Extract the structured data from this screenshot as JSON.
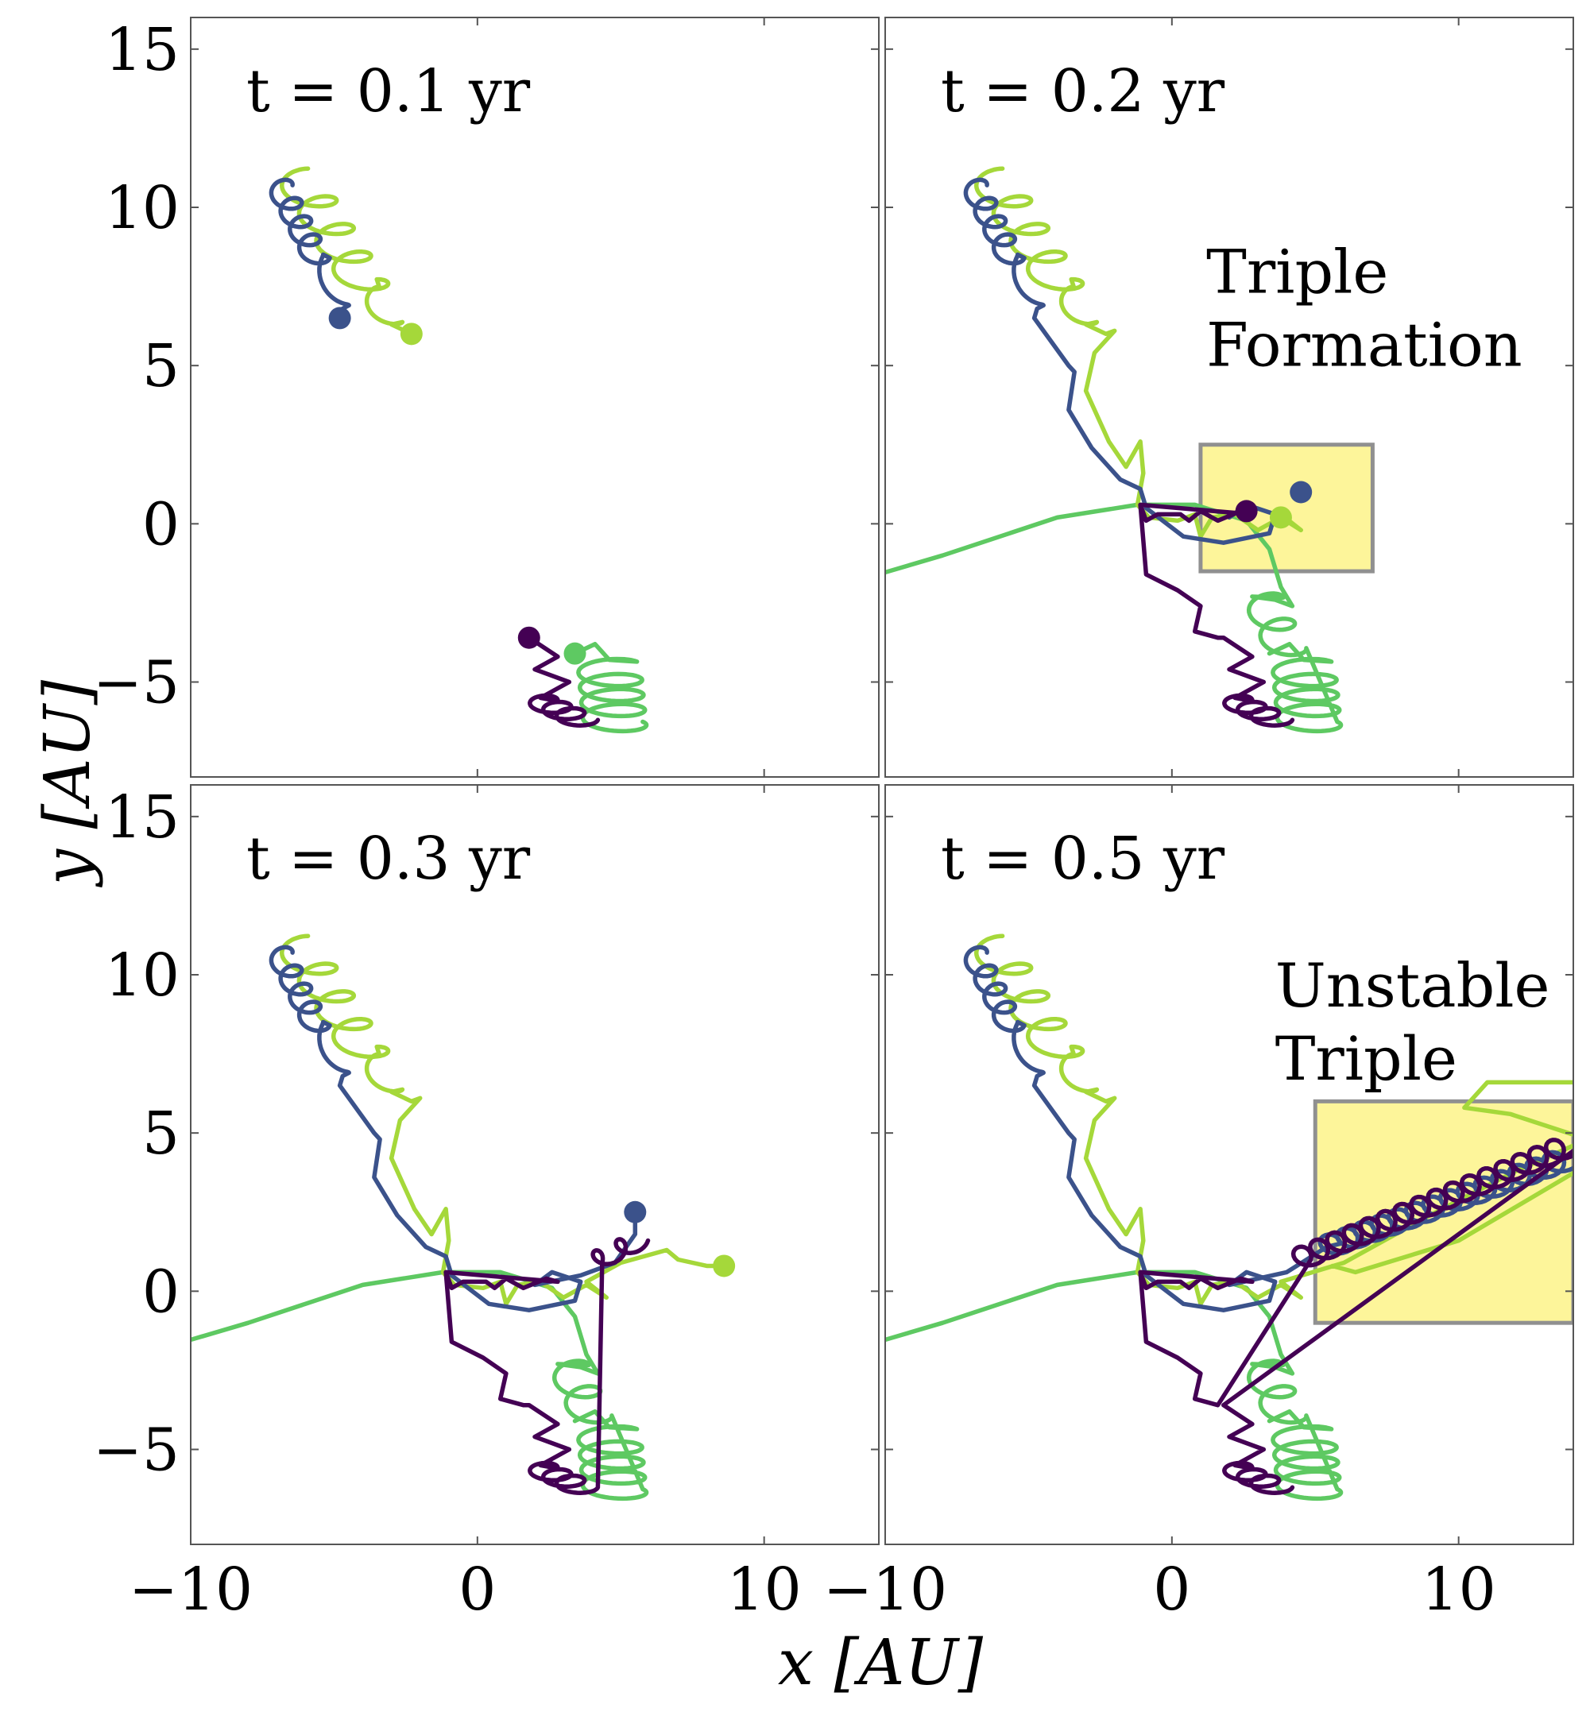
{
  "figure": {
    "xlabel": "x [AU]",
    "ylabel": "y [AU]"
  },
  "series_colors": {
    "blue": "#3b528b",
    "purple": "#440154",
    "green": "#5ec962",
    "yellow": "#a5d83a",
    "box_fill": "#fdf59a",
    "box_edge": "#909090"
  },
  "chart_data": [
    {
      "type": "line",
      "panel": "top-left",
      "title": "t = 0.1 yr",
      "xlim": [
        -10,
        14
      ],
      "ylim": [
        -8,
        16
      ],
      "xticks": [
        -10,
        0,
        10
      ],
      "yticks": [
        -5,
        0,
        5,
        10,
        15
      ],
      "xtick_labels": [],
      "ytick_labels": [
        "−5",
        "0",
        "5",
        "10",
        "15"
      ],
      "grid": false,
      "annotation": "",
      "markers": [
        {
          "series": "blue",
          "x": -4.8,
          "y": 6.5
        },
        {
          "series": "yellow",
          "x": -2.3,
          "y": 6.0
        },
        {
          "series": "purple",
          "x": 1.8,
          "y": -3.6
        },
        {
          "series": "green",
          "x": 3.4,
          "y": -4.1
        }
      ]
    },
    {
      "type": "line",
      "panel": "top-right",
      "title": "t = 0.2 yr",
      "xlim": [
        -10,
        14
      ],
      "ylim": [
        -8,
        16
      ],
      "xticks": [
        -10,
        0,
        10
      ],
      "yticks": [
        -5,
        0,
        5,
        10,
        15
      ],
      "xtick_labels": [],
      "ytick_labels": [],
      "grid": false,
      "annotation": [
        "Triple",
        "Formation"
      ],
      "highlight_box": {
        "x": [
          1.0,
          7.0
        ],
        "y": [
          -1.5,
          2.5
        ]
      },
      "markers": [
        {
          "series": "blue",
          "x": 4.5,
          "y": 1.0
        },
        {
          "series": "yellow",
          "x": 3.8,
          "y": 0.2
        },
        {
          "series": "purple",
          "x": 2.6,
          "y": 0.4
        }
      ]
    },
    {
      "type": "line",
      "panel": "bottom-left",
      "title": "t = 0.3 yr",
      "xlim": [
        -10,
        14
      ],
      "ylim": [
        -8,
        16
      ],
      "xticks": [
        -10,
        0,
        10
      ],
      "yticks": [
        -5,
        0,
        5,
        10,
        15
      ],
      "xtick_labels": [
        "−10",
        "0",
        "10"
      ],
      "ytick_labels": [
        "−5",
        "0",
        "5",
        "10",
        "15"
      ],
      "grid": false,
      "annotation": "",
      "markers": [
        {
          "series": "blue",
          "x": 5.5,
          "y": 2.5
        },
        {
          "series": "yellow",
          "x": 8.6,
          "y": 0.8
        }
      ]
    },
    {
      "type": "line",
      "panel": "bottom-right",
      "title": "t = 0.5 yr",
      "xlim": [
        -10,
        14
      ],
      "ylim": [
        -8,
        16
      ],
      "xticks": [
        -10,
        0,
        10
      ],
      "yticks": [
        -5,
        0,
        5,
        10,
        15
      ],
      "xtick_labels": [
        "−10",
        "0",
        "10"
      ],
      "ytick_labels": [],
      "grid": false,
      "annotation": [
        "Unstable",
        "Triple"
      ],
      "highlight_box": {
        "x": [
          5.0,
          14.0
        ],
        "y": [
          -1.0,
          6.0
        ]
      },
      "markers": []
    }
  ]
}
